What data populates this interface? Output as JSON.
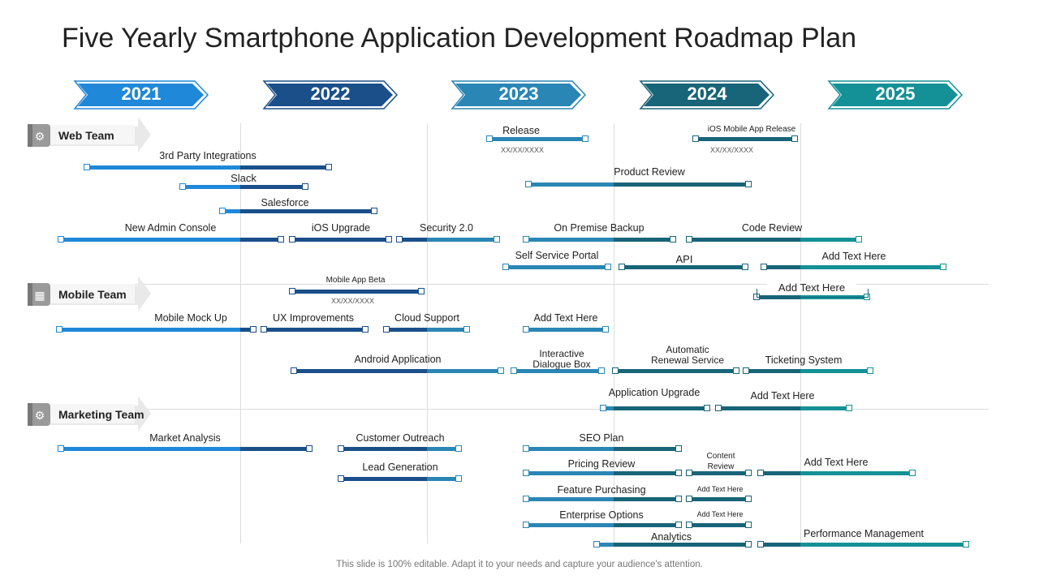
{
  "title": "Five Yearly Smartphone Application Development Roadmap Plan",
  "footer": "This slide is 100% editable. Adapt it to your needs and capture your audience's attention.",
  "colors": {
    "year_2021": "#1f88d8",
    "year_2022": "#1a4f8a",
    "year_2023": "#2a86b4",
    "year_2024": "#186478",
    "year_2025": "#139196"
  },
  "years": [
    "2021",
    "2022",
    "2023",
    "2024",
    "2025"
  ],
  "teams": [
    {
      "label": "Web Team",
      "icon": "web-team-icon"
    },
    {
      "label": "Mobile Team",
      "icon": "mobile-team-icon"
    },
    {
      "label": "Marketing Team",
      "icon": "marketing-team-icon"
    }
  ],
  "tasks": [
    {
      "label": "Release",
      "team": "Web Team",
      "date": "XX/XX/XXXX"
    },
    {
      "label": "iOS Mobile App Release",
      "team": "Web Team",
      "date": "XX/XX/XXXX"
    },
    {
      "label": "3rd Party Integrations",
      "team": "Web Team"
    },
    {
      "label": "Slack",
      "team": "Web Team"
    },
    {
      "label": "Product Review",
      "team": "Web Team"
    },
    {
      "label": "Salesforce",
      "team": "Web Team"
    },
    {
      "label": "New Admin Console",
      "team": "Web Team"
    },
    {
      "label": "iOS Upgrade",
      "team": "Web Team"
    },
    {
      "label": "Security 2.0",
      "team": "Web Team"
    },
    {
      "label": "On Premise Backup",
      "team": "Web Team"
    },
    {
      "label": "Code Review",
      "team": "Web Team"
    },
    {
      "label": "Self Service Portal",
      "team": "Web Team"
    },
    {
      "label": "API",
      "team": "Web Team"
    },
    {
      "label": "Add Text Here",
      "team": "Web Team"
    },
    {
      "label": "Mobile App Beta",
      "team": "Mobile Team",
      "date": "XX/XX/XXXX"
    },
    {
      "label": "Add Text Here",
      "team": "Mobile Team"
    },
    {
      "label": "Mobile Mock Up",
      "team": "Mobile Team"
    },
    {
      "label": "UX Improvements",
      "team": "Mobile Team"
    },
    {
      "label": "Cloud Support",
      "team": "Mobile Team"
    },
    {
      "label": "Add Text Here",
      "team": "Mobile Team"
    },
    {
      "label": "Android Application",
      "team": "Mobile Team"
    },
    {
      "label": "Interactive Dialogue Box",
      "team": "Mobile Team"
    },
    {
      "label": "Automatic Renewal Service",
      "team": "Mobile Team"
    },
    {
      "label": "Ticketing System",
      "team": "Mobile Team"
    },
    {
      "label": "Application Upgrade",
      "team": "Mobile Team"
    },
    {
      "label": "Add Text Here",
      "team": "Mobile Team"
    },
    {
      "label": "Market Analysis",
      "team": "Marketing Team"
    },
    {
      "label": "Customer Outreach",
      "team": "Marketing Team"
    },
    {
      "label": "SEO Plan",
      "team": "Marketing Team"
    },
    {
      "label": "Lead Generation",
      "team": "Marketing Team"
    },
    {
      "label": "Pricing Review",
      "team": "Marketing Team"
    },
    {
      "label": "Content Review",
      "team": "Marketing Team"
    },
    {
      "label": "Add Text Here",
      "team": "Marketing Team"
    },
    {
      "label": "Feature Purchasing",
      "team": "Marketing Team"
    },
    {
      "label": "Add Text Here",
      "team": "Marketing Team"
    },
    {
      "label": "Enterprise Options",
      "team": "Marketing Team"
    },
    {
      "label": "Add Text Here",
      "team": "Marketing Team"
    },
    {
      "label": "Analytics",
      "team": "Marketing Team"
    },
    {
      "label": "Performance Management",
      "team": "Marketing Team"
    }
  ]
}
